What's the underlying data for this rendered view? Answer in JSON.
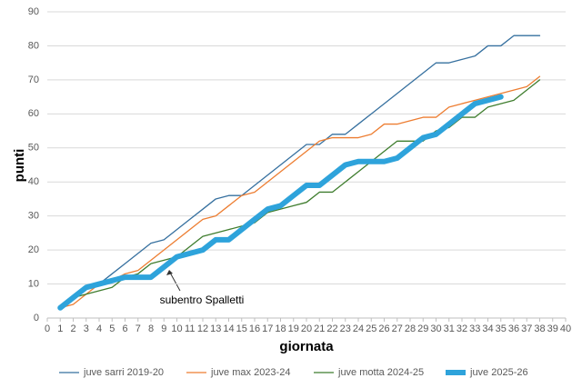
{
  "chart_data": {
    "type": "line",
    "x": [
      1,
      2,
      3,
      4,
      5,
      6,
      7,
      8,
      9,
      10,
      11,
      12,
      13,
      14,
      15,
      16,
      17,
      18,
      19,
      20,
      21,
      22,
      23,
      24,
      25,
      26,
      27,
      28,
      29,
      30,
      31,
      32,
      33,
      34,
      35,
      36,
      37,
      38
    ],
    "series": [
      {
        "name": "juve sarri 2019-20",
        "color": "#36709f",
        "linewidth": 1.3,
        "values": [
          3,
          6,
          9,
          10,
          13,
          16,
          19,
          22,
          23,
          26,
          29,
          32,
          35,
          36,
          36,
          39,
          42,
          45,
          48,
          51,
          51,
          54,
          54,
          57,
          60,
          63,
          66,
          69,
          72,
          75,
          75,
          76,
          77,
          80,
          80,
          83,
          83,
          83
        ]
      },
      {
        "name": "juve max 2023-24",
        "color": "#ed7d31",
        "linewidth": 1.3,
        "values": [
          3,
          4,
          7,
          10,
          11,
          13,
          14,
          17,
          20,
          23,
          26,
          29,
          30,
          33,
          36,
          37,
          40,
          43,
          46,
          49,
          52,
          53,
          53,
          53,
          54,
          57,
          57,
          58,
          59,
          59,
          62,
          63,
          64,
          65,
          66,
          67,
          68,
          71
        ]
      },
      {
        "name": "juve motta 2024-25",
        "color": "#3f7d2e",
        "linewidth": 1.3,
        "values": [
          3,
          6,
          7,
          8,
          9,
          12,
          13,
          16,
          17,
          18,
          21,
          24,
          25,
          26,
          27,
          28,
          31,
          32,
          33,
          34,
          37,
          37,
          40,
          43,
          46,
          49,
          52,
          52,
          52,
          55,
          56,
          59,
          59,
          62,
          63,
          64,
          67,
          70
        ]
      },
      {
        "name": "juve 2025-26",
        "color": "#2ea3db",
        "linewidth": 6,
        "values": [
          3,
          6,
          9,
          10,
          11,
          12,
          12,
          12,
          15,
          18,
          19,
          20,
          23,
          23,
          26,
          29,
          32,
          33,
          36,
          39,
          39,
          42,
          45,
          46,
          46,
          46,
          47,
          50,
          53,
          54,
          57,
          60,
          63,
          64,
          65,
          null,
          null,
          null
        ]
      }
    ],
    "xlabel": "giornata",
    "ylabel": "punti",
    "xlim": [
      0,
      40
    ],
    "xticks": [
      0,
      1,
      2,
      3,
      4,
      5,
      6,
      7,
      8,
      9,
      10,
      11,
      12,
      13,
      14,
      15,
      16,
      17,
      18,
      19,
      20,
      21,
      22,
      23,
      24,
      25,
      26,
      27,
      28,
      29,
      30,
      31,
      32,
      33,
      34,
      35,
      36,
      37,
      38,
      39,
      40
    ],
    "ylim": [
      0,
      90
    ],
    "yticks": [
      0,
      10,
      20,
      30,
      40,
      50,
      60,
      70,
      80,
      90
    ],
    "grid": true,
    "legend": "bottom",
    "annotations": [
      {
        "text": "subentro Spalletti"
      }
    ]
  }
}
